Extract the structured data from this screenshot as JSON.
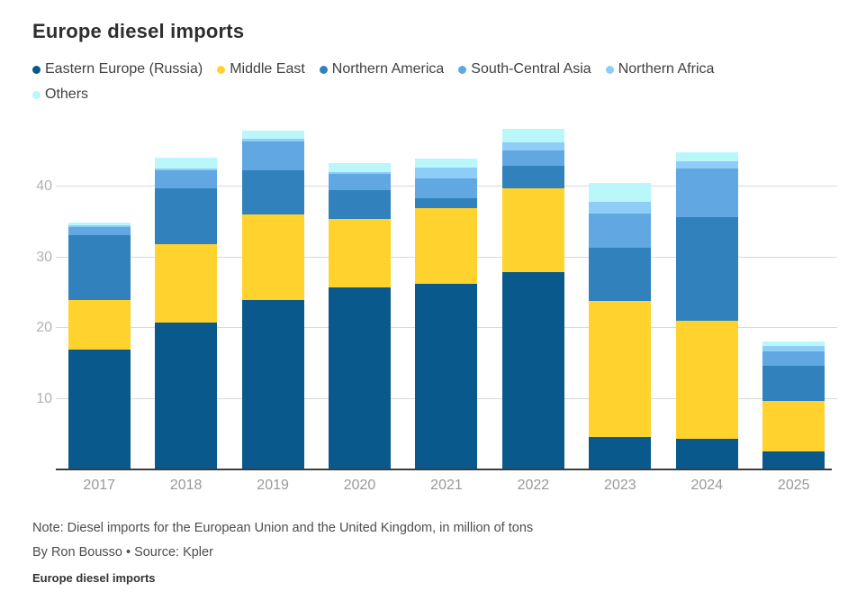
{
  "header": {
    "title": "Europe diesel imports"
  },
  "footer": {
    "note": "Note: Diesel imports for the European Union and the United Kingdom, in million of tons",
    "byline": "By Ron Bousso • Source: Kpler",
    "caption": "Europe diesel imports"
  },
  "colors": {
    "gridline": "#d9d9d9",
    "axis_line": "#3d3d3d",
    "tick_label": "#b2b2b2",
    "x_label": "#999999"
  },
  "chart_data": {
    "type": "bar",
    "stacked": true,
    "title": "Europe diesel imports",
    "xlabel": "",
    "ylabel": "",
    "unit": "million of tons",
    "categories": [
      "2017",
      "2018",
      "2019",
      "2020",
      "2021",
      "2022",
      "2023",
      "2024",
      "2025"
    ],
    "yticks": [
      10,
      20,
      30,
      40
    ],
    "ylim": [
      0,
      48.5
    ],
    "grid": true,
    "legend_position": "top",
    "series": [
      {
        "name": "Eastern Europe (Russia)",
        "color": "#09598c",
        "values": [
          17.0,
          20.8,
          24.0,
          25.7,
          26.2,
          27.9,
          4.6,
          4.3,
          2.6
        ]
      },
      {
        "name": "Middle East",
        "color": "#ffd22e",
        "values": [
          6.9,
          11.0,
          12.0,
          9.7,
          10.7,
          11.8,
          19.2,
          16.7,
          7.1
        ]
      },
      {
        "name": "Northern America",
        "color": "#3182bc",
        "values": [
          9.2,
          8.0,
          6.3,
          4.1,
          1.5,
          3.2,
          7.5,
          14.7,
          4.9
        ]
      },
      {
        "name": "South-Central Asia",
        "color": "#61a7e1",
        "values": [
          1.2,
          2.5,
          4.1,
          2.3,
          2.7,
          2.2,
          4.9,
          6.8,
          2.1
        ]
      },
      {
        "name": "Northern Africa",
        "color": "#8dcdf8",
        "values": [
          0.2,
          0.3,
          0.3,
          0.2,
          1.6,
          1.1,
          1.6,
          1.1,
          0.8
        ]
      },
      {
        "name": "Others",
        "color": "#b9f7fb",
        "values": [
          0.4,
          1.5,
          1.2,
          1.3,
          1.2,
          1.9,
          2.7,
          1.2,
          0.6
        ]
      }
    ],
    "totals": [
      34.9,
      44.1,
      47.9,
      43.3,
      43.9,
      48.1,
      40.5,
      44.8,
      18.1
    ]
  }
}
